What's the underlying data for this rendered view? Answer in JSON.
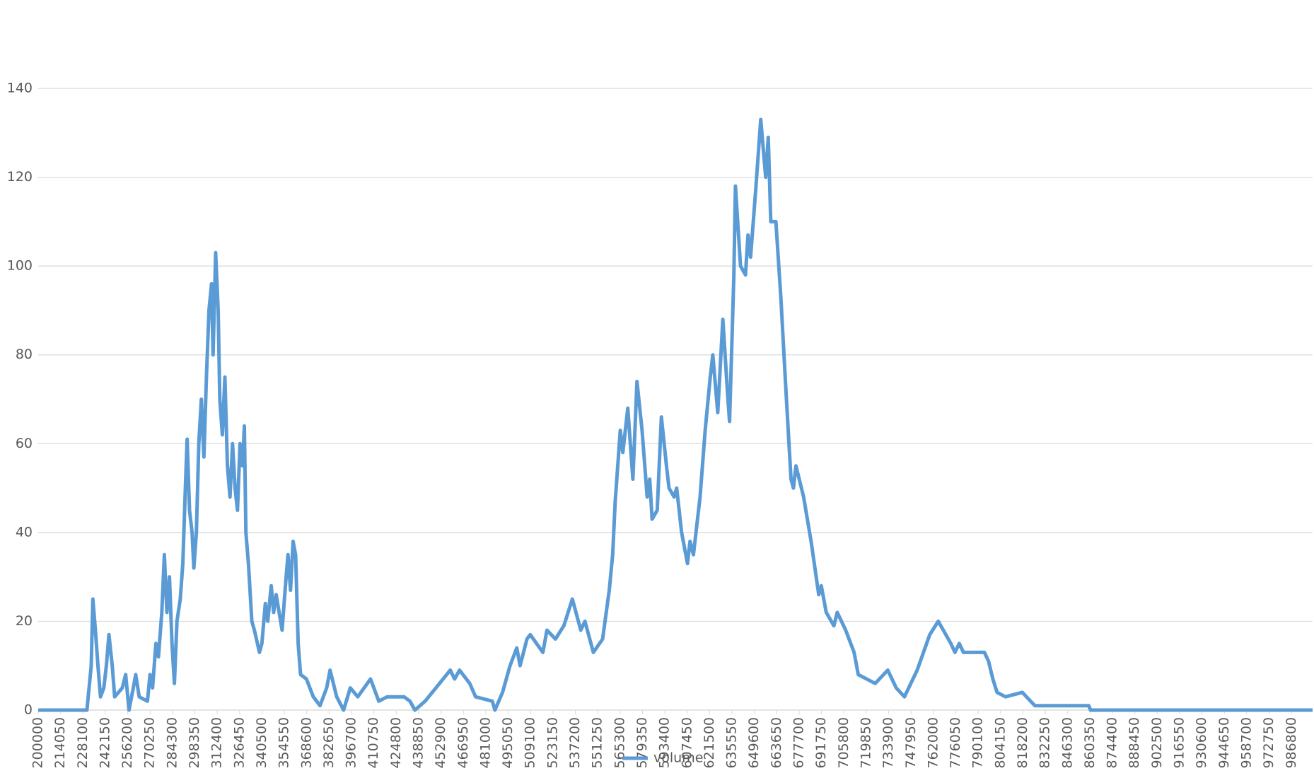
{
  "chart_data": {
    "type": "line",
    "x": [
      200000,
      230600,
      233300,
      234300,
      235900,
      237500,
      239100,
      241200,
      242800,
      244400,
      246500,
      248000,
      252800,
      254900,
      257000,
      259700,
      261200,
      263400,
      268600,
      270200,
      271800,
      273900,
      275500,
      277600,
      279200,
      280800,
      282400,
      284000,
      285500,
      287100,
      289200,
      290800,
      292400,
      293500,
      295000,
      296600,
      297700,
      299300,
      300800,
      302400,
      304000,
      305600,
      307200,
      308800,
      309800,
      311400,
      313000,
      314000,
      315600,
      317200,
      318800,
      320400,
      322000,
      323600,
      325100,
      326700,
      328300,
      329400,
      330400,
      332000,
      334100,
      335700,
      338900,
      340400,
      342600,
      344100,
      346300,
      347800,
      349400,
      353100,
      355200,
      356800,
      358400,
      360000,
      361600,
      363200,
      364700,
      368400,
      372700,
      376900,
      381100,
      383200,
      387400,
      391700,
      395900,
      400600,
      408600,
      413800,
      419100,
      429700,
      433400,
      436500,
      442900,
      449700,
      458700,
      461400,
      464500,
      470900,
      474600,
      485100,
      486700,
      491500,
      496200,
      500400,
      502500,
      506800,
      508900,
      516800,
      519400,
      524700,
      530000,
      535300,
      540600,
      543200,
      548500,
      554300,
      558500,
      560600,
      562200,
      565400,
      567000,
      570100,
      573300,
      575900,
      579100,
      582300,
      583900,
      585400,
      588600,
      591200,
      594400,
      596000,
      599200,
      600800,
      603900,
      607600,
      609200,
      611300,
      615500,
      618700,
      621900,
      623500,
      626600,
      629800,
      633000,
      634000,
      636700,
      637700,
      640900,
      644000,
      645600,
      647200,
      650400,
      653600,
      656700,
      658300,
      659900,
      663100,
      666200,
      669400,
      672600,
      674100,
      675700,
      680500,
      685200,
      690000,
      691600,
      694700,
      699500,
      701600,
      706900,
      712200,
      714800,
      725400,
      733300,
      738600,
      743800,
      751800,
      759700,
      765000,
      772900,
      775500,
      778200,
      780800,
      788700,
      794000,
      796600,
      799300,
      801900,
      807200,
      817800,
      823000,
      825700,
      859500,
      860600,
      1000000
    ],
    "series": [
      {
        "name": "volume",
        "color": "#5b9bd5",
        "values": [
          0,
          0,
          10,
          25,
          18,
          10,
          3,
          5,
          10,
          17,
          10,
          3,
          5,
          8,
          0,
          5,
          8,
          3,
          2,
          8,
          5,
          15,
          12,
          22,
          35,
          22,
          30,
          15,
          6,
          20,
          25,
          33,
          50,
          61,
          45,
          40,
          32,
          40,
          60,
          70,
          57,
          75,
          90,
          96,
          80,
          103,
          90,
          70,
          62,
          75,
          55,
          48,
          60,
          50,
          45,
          60,
          55,
          64,
          40,
          33,
          20,
          18,
          13,
          15,
          24,
          20,
          28,
          22,
          26,
          18,
          28,
          35,
          27,
          38,
          35,
          15,
          8,
          7,
          3,
          1,
          5,
          9,
          3,
          0,
          5,
          3,
          7,
          2,
          3,
          3,
          2,
          0,
          2,
          5,
          9,
          7,
          9,
          6,
          3,
          2,
          0,
          4,
          10,
          14,
          10,
          16,
          17,
          13,
          18,
          16,
          19,
          25,
          18,
          20,
          13,
          16,
          27,
          35,
          47,
          63,
          58,
          68,
          52,
          74,
          63,
          48,
          52,
          43,
          45,
          66,
          55,
          50,
          48,
          50,
          40,
          33,
          38,
          35,
          48,
          63,
          75,
          80,
          67,
          88,
          70,
          65,
          98,
          118,
          100,
          98,
          107,
          102,
          117,
          133,
          120,
          129,
          110,
          110,
          93,
          72,
          52,
          50,
          55,
          48,
          38,
          26,
          28,
          22,
          19,
          22,
          18,
          13,
          8,
          6,
          9,
          5,
          3,
          9,
          17,
          20,
          15,
          13,
          15,
          13,
          13,
          13,
          11,
          7,
          4,
          3,
          4,
          2,
          1,
          1,
          0,
          0
        ]
      }
    ],
    "xlim": [
      200000,
      1000000
    ],
    "xticks": [
      200000,
      214050,
      228100,
      242150,
      256200,
      270250,
      284300,
      298350,
      312400,
      326450,
      340500,
      354550,
      368600,
      382650,
      396700,
      410750,
      424800,
      438850,
      452900,
      466950,
      481000,
      495050,
      509100,
      523150,
      537200,
      551250,
      565300,
      579350,
      593400,
      607450,
      621500,
      635550,
      649600,
      663650,
      677700,
      691750,
      705800,
      719850,
      733900,
      747950,
      762000,
      776050,
      790100,
      804150,
      818200,
      832250,
      846300,
      860350,
      874400,
      888450,
      902500,
      916550,
      930600,
      944650,
      958700,
      972750,
      986800
    ],
    "ylim": [
      0,
      140
    ],
    "yticks": [
      0,
      20,
      40,
      60,
      80,
      100,
      120,
      140
    ],
    "grid": true,
    "legend": "bottom"
  }
}
